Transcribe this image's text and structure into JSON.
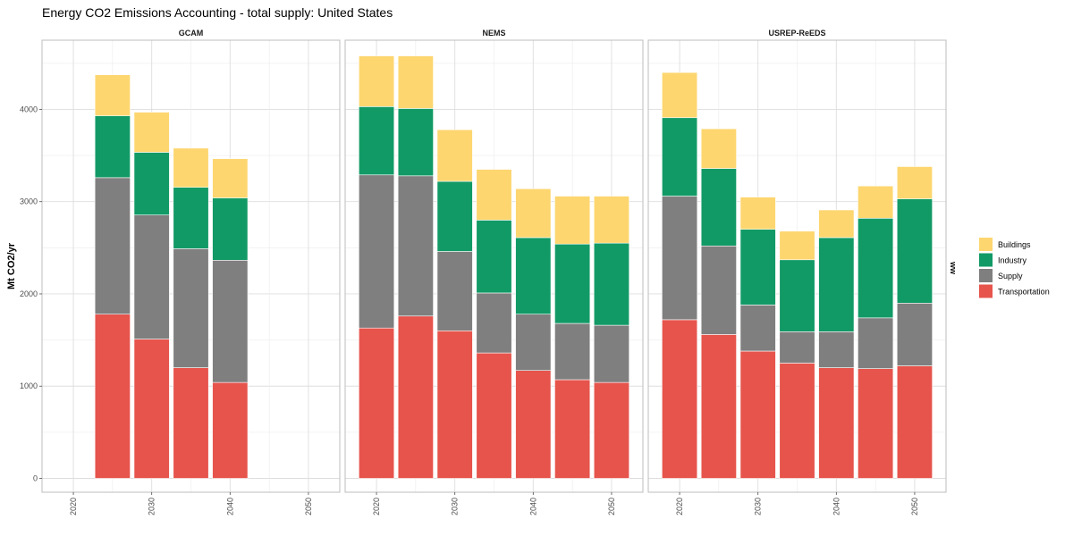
{
  "chart_data": {
    "type": "bar",
    "stacked": true,
    "title": "Energy CO2 Emissions Accounting - total supply: United States",
    "ylabel": "Mt CO2/yr",
    "xlabel": "",
    "ylim": [
      -150,
      4750
    ],
    "yticks": [
      0,
      1000,
      2000,
      3000,
      4000
    ],
    "xlim": [
      2016,
      2054
    ],
    "xticks": [
      2020,
      2030,
      2040,
      2050
    ],
    "grid": true,
    "legend": {
      "title": "ww",
      "position": "right",
      "items": [
        {
          "label": "Buildings",
          "color": "#FDD670"
        },
        {
          "label": "Industry",
          "color": "#129A66"
        },
        {
          "label": "Supply",
          "color": "#7F7F7F"
        },
        {
          "label": "Transportation",
          "color": "#E6544C"
        }
      ]
    },
    "panels": [
      {
        "name": "GCAM",
        "x": [
          2025,
          2030,
          2035,
          2040
        ],
        "series": [
          {
            "name": "Transportation",
            "values": [
              1780,
              1510,
              1200,
              1040
            ]
          },
          {
            "name": "Supply",
            "values": [
              1480,
              1345,
              1290,
              1325
            ]
          },
          {
            "name": "Industry",
            "values": [
              670,
              680,
              665,
              675
            ]
          },
          {
            "name": "Buildings",
            "values": [
              445,
              435,
              425,
              425
            ]
          }
        ]
      },
      {
        "name": "NEMS",
        "x": [
          2020,
          2025,
          2030,
          2035,
          2040,
          2045,
          2050
        ],
        "series": [
          {
            "name": "Transportation",
            "values": [
              1630,
              1760,
              1600,
              1360,
              1170,
              1070,
              1040
            ]
          },
          {
            "name": "Supply",
            "values": [
              1660,
              1520,
              860,
              650,
              610,
              610,
              620
            ]
          },
          {
            "name": "Industry",
            "values": [
              740,
              730,
              760,
              790,
              830,
              860,
              890
            ]
          },
          {
            "name": "Buildings",
            "values": [
              550,
              570,
              560,
              550,
              530,
              520,
              510
            ]
          }
        ]
      },
      {
        "name": "USREP-ReEDS",
        "x": [
          2020,
          2025,
          2030,
          2035,
          2040,
          2045,
          2050
        ],
        "series": [
          {
            "name": "Transportation",
            "values": [
              1720,
              1560,
              1380,
              1250,
              1200,
              1190,
              1220
            ]
          },
          {
            "name": "Supply",
            "values": [
              1340,
              960,
              500,
              340,
              390,
              550,
              680
            ]
          },
          {
            "name": "Industry",
            "values": [
              850,
              840,
              820,
              780,
              1020,
              1080,
              1130
            ]
          },
          {
            "name": "Buildings",
            "values": [
              490,
              430,
              350,
              310,
              300,
              350,
              350
            ]
          }
        ]
      }
    ]
  }
}
